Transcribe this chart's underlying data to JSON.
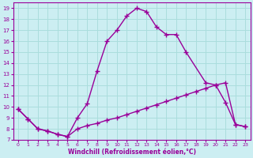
{
  "xlabel": "Windchill (Refroidissement éolien,°C)",
  "bg_color": "#cceef2",
  "line_color": "#990099",
  "grid_color": "#aadddd",
  "xlim": [
    -0.5,
    23.5
  ],
  "ylim": [
    7,
    19.5
  ],
  "xticks": [
    0,
    1,
    2,
    3,
    4,
    5,
    6,
    7,
    8,
    9,
    10,
    11,
    12,
    13,
    14,
    15,
    16,
    17,
    18,
    19,
    20,
    21,
    22,
    23
  ],
  "yticks": [
    7,
    8,
    9,
    10,
    11,
    12,
    13,
    14,
    15,
    16,
    17,
    18,
    19
  ],
  "line1_x": [
    0,
    1,
    2,
    3,
    4,
    5,
    6,
    7,
    8,
    9,
    10,
    11,
    12,
    13,
    14,
    15,
    16,
    17,
    19,
    20,
    21,
    22,
    23
  ],
  "line1_y": [
    9.8,
    8.9,
    8.0,
    7.8,
    7.5,
    7.3,
    9.0,
    10.3,
    13.3,
    16.0,
    17.0,
    18.3,
    19.0,
    18.7,
    17.3,
    16.6,
    16.6,
    15.0,
    12.2,
    12.0,
    10.4,
    8.4,
    8.2
  ],
  "line2_x": [
    0,
    1,
    2,
    3,
    4,
    5,
    6,
    7,
    8,
    9,
    10,
    11,
    12,
    13,
    14,
    15,
    16,
    17,
    18,
    19,
    20,
    21,
    22,
    23
  ],
  "line2_y": [
    9.8,
    8.9,
    8.0,
    7.8,
    7.5,
    7.3,
    8.0,
    8.3,
    8.5,
    8.8,
    9.0,
    9.3,
    9.6,
    9.9,
    10.2,
    10.5,
    10.8,
    11.1,
    11.4,
    11.7,
    12.0,
    12.2,
    8.4,
    8.2
  ]
}
